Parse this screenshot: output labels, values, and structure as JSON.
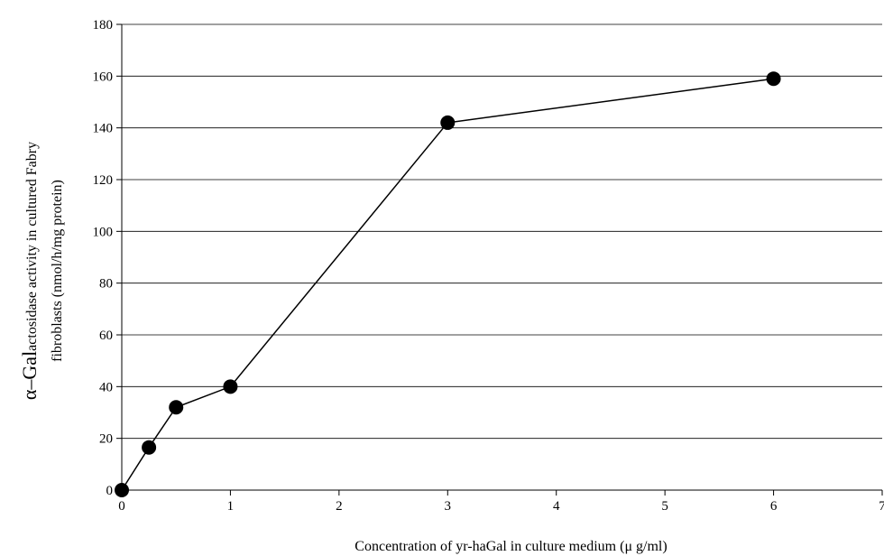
{
  "chart_data": {
    "type": "line",
    "title": "",
    "xlabel": "Concentration of yr-haGal in culture medium (μ g/ml)",
    "ylabel_prefix": "α–Gal",
    "ylabel_line1_rest": "actosidase activity in cultured Fabry",
    "ylabel_line2": "fibroblasts (nmol/h/mg protein)",
    "xlim": [
      0,
      7
    ],
    "ylim": [
      0,
      180
    ],
    "xticks": [
      0,
      1,
      2,
      3,
      4,
      5,
      6,
      7
    ],
    "yticks": [
      0,
      20,
      40,
      60,
      80,
      100,
      120,
      140,
      160,
      180
    ],
    "grid": "horizontal",
    "legend": "none",
    "series": [
      {
        "x": [
          0,
          0.25,
          0.5,
          1,
          3,
          6
        ],
        "y": [
          0,
          16.5,
          32,
          40,
          142,
          159
        ]
      }
    ]
  }
}
